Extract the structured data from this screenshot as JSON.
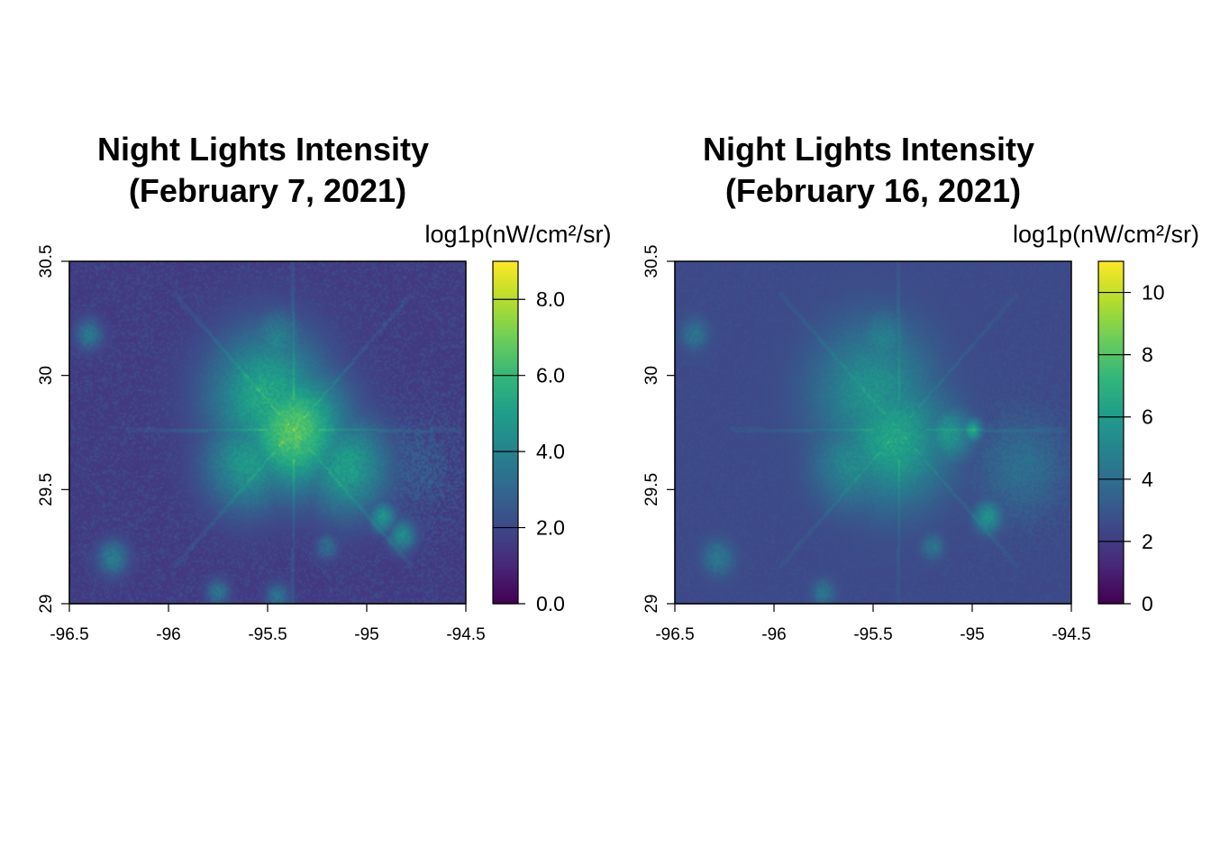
{
  "chart_data": [
    {
      "type": "heatmap",
      "title_line1": "Night Lights Intensity",
      "title_line2": "(February 7, 2021)",
      "legend_title": "log1p(nW/cm²/sr)",
      "xlim": [
        -96.5,
        -94.5
      ],
      "ylim": [
        29,
        30.5
      ],
      "x_ticks": [
        -96.5,
        -96,
        -95.5,
        -95,
        -94.5
      ],
      "x_tick_labels": [
        "-96.5",
        "-96",
        "-95.5",
        "-95",
        "-94.5"
      ],
      "y_ticks": [
        29,
        29.5,
        30,
        30.5
      ],
      "y_tick_labels": [
        "29",
        "29.5",
        "30",
        "30.5"
      ],
      "colorbar_range": [
        0,
        9
      ],
      "colorbar_ticks": [
        0,
        2,
        4,
        6,
        8
      ],
      "colorbar_tick_labels": [
        "0.0",
        "2.0",
        "4.0",
        "6.0",
        "8.0"
      ],
      "colormap": "viridis",
      "colormap_stops": [
        "#440154",
        "#482878",
        "#3e4989",
        "#31688e",
        "#26828e",
        "#1f9e89",
        "#35b779",
        "#6ece58",
        "#b5de2b",
        "#fde725"
      ],
      "background_level": 1.5,
      "hotspots": [
        {
          "lon": -95.37,
          "lat": 29.76,
          "level": 6.6,
          "radius": 0.27
        },
        {
          "lon": -95.5,
          "lat": 29.9,
          "level": 5.4,
          "radius": 0.3
        },
        {
          "lon": -95.1,
          "lat": 29.6,
          "level": 5.0,
          "radius": 0.22
        },
        {
          "lon": -95.6,
          "lat": 29.62,
          "level": 4.8,
          "radius": 0.22
        },
        {
          "lon": -95.45,
          "lat": 30.15,
          "level": 4.0,
          "radius": 0.14
        },
        {
          "lon": -94.92,
          "lat": 29.38,
          "level": 4.6,
          "radius": 0.07
        },
        {
          "lon": -94.82,
          "lat": 29.3,
          "level": 4.4,
          "radius": 0.07
        },
        {
          "lon": -96.28,
          "lat": 29.2,
          "level": 3.8,
          "radius": 0.08
        },
        {
          "lon": -96.4,
          "lat": 30.18,
          "level": 3.6,
          "radius": 0.07
        },
        {
          "lon": -95.75,
          "lat": 29.05,
          "level": 3.4,
          "radius": 0.06
        },
        {
          "lon": -95.45,
          "lat": 29.03,
          "level": 3.4,
          "radius": 0.06
        },
        {
          "lon": -95.2,
          "lat": 29.25,
          "level": 3.2,
          "radius": 0.06
        }
      ]
    },
    {
      "type": "heatmap",
      "title_line1": "Night Lights Intensity",
      "title_line2": "(February 16, 2021)",
      "legend_title": "log1p(nW/cm²/sr)",
      "xlim": [
        -96.5,
        -94.5
      ],
      "ylim": [
        29,
        30.5
      ],
      "x_ticks": [
        -96.5,
        -96,
        -95.5,
        -95,
        -94.5
      ],
      "x_tick_labels": [
        "-96.5",
        "-96",
        "-95.5",
        "-95",
        "-94.5"
      ],
      "y_ticks": [
        29,
        29.5,
        30,
        30.5
      ],
      "y_tick_labels": [
        "29",
        "29.5",
        "30",
        "30.5"
      ],
      "colorbar_range": [
        0,
        11
      ],
      "colorbar_ticks": [
        0,
        2,
        4,
        6,
        8,
        10
      ],
      "colorbar_tick_labels": [
        "0",
        "2",
        "4",
        "6",
        "8",
        "10"
      ],
      "colormap": "viridis",
      "colormap_stops": [
        "#440154",
        "#482878",
        "#3e4989",
        "#31688e",
        "#26828e",
        "#1f9e89",
        "#35b779",
        "#6ece58",
        "#b5de2b",
        "#fde725"
      ],
      "background_level": 2.4,
      "hotspots": [
        {
          "lon": -95.4,
          "lat": 29.72,
          "level": 6.4,
          "radius": 0.28
        },
        {
          "lon": -95.5,
          "lat": 29.92,
          "level": 5.6,
          "radius": 0.3
        },
        {
          "lon": -95.12,
          "lat": 29.74,
          "level": 5.8,
          "radius": 0.12
        },
        {
          "lon": -95.0,
          "lat": 29.76,
          "level": 6.4,
          "radius": 0.05
        },
        {
          "lon": -95.6,
          "lat": 29.62,
          "level": 5.2,
          "radius": 0.2
        },
        {
          "lon": -95.45,
          "lat": 30.15,
          "level": 4.8,
          "radius": 0.14
        },
        {
          "lon": -94.92,
          "lat": 29.38,
          "level": 5.6,
          "radius": 0.07
        },
        {
          "lon": -96.28,
          "lat": 29.2,
          "level": 4.4,
          "radius": 0.08
        },
        {
          "lon": -96.4,
          "lat": 30.18,
          "level": 4.2,
          "radius": 0.07
        },
        {
          "lon": -95.75,
          "lat": 29.05,
          "level": 4.2,
          "radius": 0.06
        },
        {
          "lon": -95.2,
          "lat": 29.25,
          "level": 4.2,
          "radius": 0.06
        }
      ]
    }
  ]
}
